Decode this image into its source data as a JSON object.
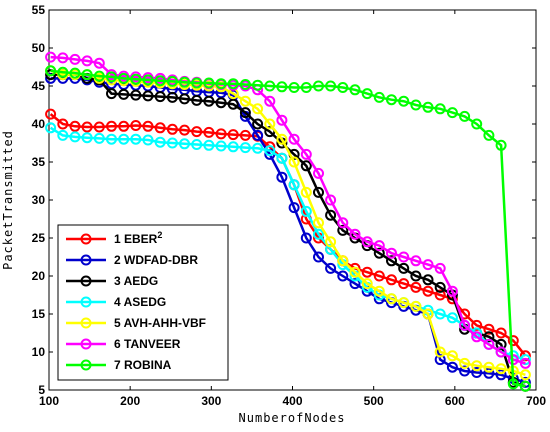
{
  "chart_data": {
    "type": "line",
    "title": "",
    "xlabel": "NumberofNodes",
    "ylabel": "PacketTransmitted",
    "xlim": [
      100,
      700
    ],
    "ylim": [
      5,
      55
    ],
    "xticks": [
      100,
      200,
      300,
      400,
      500,
      600,
      700
    ],
    "yticks": [
      5,
      10,
      15,
      20,
      25,
      30,
      35,
      40,
      45,
      50,
      55
    ],
    "grid": false,
    "legend_position": "bottom-left",
    "series": [
      {
        "name": "1 EBER",
        "superscript": "2",
        "color": "#ff0000",
        "x": [
          102,
          117,
          132,
          147,
          162,
          177,
          192,
          207,
          222,
          237,
          252,
          267,
          282,
          297,
          312,
          327,
          342,
          357,
          372,
          387,
          402,
          417,
          432,
          447,
          462,
          477,
          492,
          507,
          522,
          537,
          552,
          567,
          582,
          597,
          612,
          627,
          642,
          657,
          672,
          687
        ],
        "values": [
          41.3,
          40.0,
          39.7,
          39.6,
          39.6,
          39.7,
          39.7,
          39.8,
          39.7,
          39.5,
          39.3,
          39.2,
          39.0,
          38.9,
          38.7,
          38.6,
          38.5,
          38.4,
          37.0,
          35.5,
          32.0,
          27.5,
          25.0,
          23.5,
          22.0,
          21.0,
          20.5,
          20.0,
          19.5,
          19.0,
          18.5,
          18.0,
          17.5,
          17.0,
          15.0,
          13.5,
          13.0,
          12.5,
          11.5,
          9.5
        ]
      },
      {
        "name": "2 WDFAD-DBR",
        "color": "#0000cc",
        "x": [
          102,
          117,
          132,
          147,
          162,
          177,
          192,
          207,
          222,
          237,
          252,
          267,
          282,
          297,
          312,
          327,
          342,
          357,
          372,
          387,
          402,
          417,
          432,
          447,
          462,
          477,
          492,
          507,
          522,
          537,
          552,
          567,
          582,
          597,
          612,
          627,
          642,
          657,
          672,
          687
        ],
        "values": [
          46.0,
          46.0,
          46.0,
          45.8,
          45.5,
          45.3,
          45.2,
          45.1,
          45.0,
          44.8,
          44.6,
          44.5,
          44.3,
          44.2,
          44.1,
          43.8,
          41.0,
          38.5,
          36.0,
          33.0,
          29.0,
          25.0,
          22.5,
          21.0,
          20.0,
          19.0,
          18.0,
          17.0,
          16.5,
          16.0,
          15.5,
          15.0,
          9.0,
          8.0,
          7.5,
          7.3,
          7.2,
          7.0,
          6.5,
          6.0
        ]
      },
      {
        "name": "3 AEDG",
        "color": "#000000",
        "x": [
          102,
          117,
          132,
          147,
          162,
          177,
          192,
          207,
          222,
          237,
          252,
          267,
          282,
          297,
          312,
          327,
          342,
          357,
          372,
          387,
          402,
          417,
          432,
          447,
          462,
          477,
          492,
          507,
          522,
          537,
          552,
          567,
          582,
          597,
          612,
          627,
          642,
          657,
          672,
          687
        ],
        "values": [
          46.5,
          46.5,
          46.5,
          46.0,
          45.8,
          44.0,
          43.9,
          43.8,
          43.7,
          43.6,
          43.5,
          43.3,
          43.1,
          43.0,
          42.8,
          42.6,
          41.5,
          40.0,
          39.0,
          37.5,
          36.0,
          34.5,
          31.0,
          28.0,
          26.0,
          25.0,
          24.0,
          23.0,
          22.0,
          21.0,
          20.0,
          19.5,
          18.5,
          17.5,
          13.0,
          12.5,
          12.0,
          11.0,
          6.0,
          5.5
        ]
      },
      {
        "name": "4 ASEDG",
        "color": "#00ffff",
        "x": [
          102,
          117,
          132,
          147,
          162,
          177,
          192,
          207,
          222,
          237,
          252,
          267,
          282,
          297,
          312,
          327,
          342,
          357,
          372,
          387,
          402,
          417,
          432,
          447,
          462,
          477,
          492,
          507,
          522,
          537,
          552,
          567,
          582,
          597,
          612,
          627,
          642,
          657,
          672,
          687
        ],
        "values": [
          39.5,
          38.5,
          38.3,
          38.2,
          38.1,
          38.0,
          38.0,
          38.0,
          37.9,
          37.6,
          37.5,
          37.4,
          37.3,
          37.2,
          37.1,
          37.0,
          36.9,
          36.8,
          36.5,
          35.5,
          32.0,
          28.5,
          25.5,
          23.5,
          21.5,
          20.0,
          18.5,
          17.5,
          17.0,
          16.5,
          16.0,
          15.5,
          15.0,
          14.5,
          13.5,
          12.5,
          11.0,
          10.0,
          9.5,
          9.0
        ]
      },
      {
        "name": "5 AVH-AHH-VBF",
        "color": "#ffff00",
        "x": [
          102,
          117,
          132,
          147,
          162,
          177,
          192,
          207,
          222,
          237,
          252,
          267,
          282,
          297,
          312,
          327,
          342,
          357,
          372,
          387,
          402,
          417,
          432,
          447,
          462,
          477,
          492,
          507,
          522,
          537,
          552,
          567,
          582,
          597,
          612,
          627,
          642,
          657,
          672,
          687
        ],
        "values": [
          47.0,
          46.5,
          46.5,
          46.5,
          46.0,
          45.8,
          45.7,
          45.6,
          45.5,
          45.4,
          45.3,
          45.2,
          45.1,
          45.0,
          44.9,
          44.0,
          43.0,
          42.0,
          40.0,
          38.0,
          35.0,
          31.0,
          27.0,
          24.5,
          22.0,
          20.5,
          19.0,
          18.0,
          17.0,
          16.5,
          16.0,
          15.0,
          10.0,
          9.5,
          8.5,
          8.2,
          8.0,
          7.8,
          7.5,
          7.0
        ]
      },
      {
        "name": "6 TANVEER",
        "color": "#ff00ff",
        "x": [
          102,
          117,
          132,
          147,
          162,
          177,
          192,
          207,
          222,
          237,
          252,
          267,
          282,
          297,
          312,
          327,
          342,
          357,
          372,
          387,
          402,
          417,
          432,
          447,
          462,
          477,
          492,
          507,
          522,
          537,
          552,
          567,
          582,
          597,
          612,
          627,
          642,
          657,
          672,
          687
        ],
        "values": [
          48.8,
          48.7,
          48.5,
          48.3,
          48.0,
          46.5,
          46.3,
          46.2,
          46.1,
          46.0,
          45.8,
          45.6,
          45.5,
          45.3,
          45.2,
          45.1,
          45.0,
          44.5,
          43.0,
          40.5,
          38.0,
          36.0,
          33.5,
          30.0,
          27.0,
          25.5,
          24.5,
          24.0,
          23.0,
          22.5,
          22.0,
          21.5,
          21.0,
          18.0,
          13.5,
          12.0,
          11.0,
          10.0,
          9.0,
          8.5
        ]
      },
      {
        "name": "7 ROBINA",
        "color": "#00ff00",
        "x": [
          102,
          117,
          132,
          147,
          162,
          177,
          192,
          207,
          222,
          237,
          252,
          267,
          282,
          297,
          312,
          327,
          342,
          357,
          372,
          387,
          402,
          417,
          432,
          447,
          462,
          477,
          492,
          507,
          522,
          537,
          552,
          567,
          582,
          597,
          612,
          627,
          642,
          657,
          672,
          687
        ],
        "values": [
          47.0,
          46.8,
          46.7,
          46.5,
          46.3,
          46.2,
          46.0,
          45.9,
          45.8,
          45.7,
          45.6,
          45.5,
          45.4,
          45.4,
          45.3,
          45.3,
          45.2,
          45.1,
          45.0,
          44.9,
          44.8,
          44.8,
          45.0,
          45.0,
          44.8,
          44.5,
          44.0,
          43.5,
          43.2,
          43.0,
          42.5,
          42.2,
          42.0,
          41.5,
          41.0,
          40.0,
          38.5,
          37.2,
          5.8,
          5.5
        ]
      }
    ]
  }
}
